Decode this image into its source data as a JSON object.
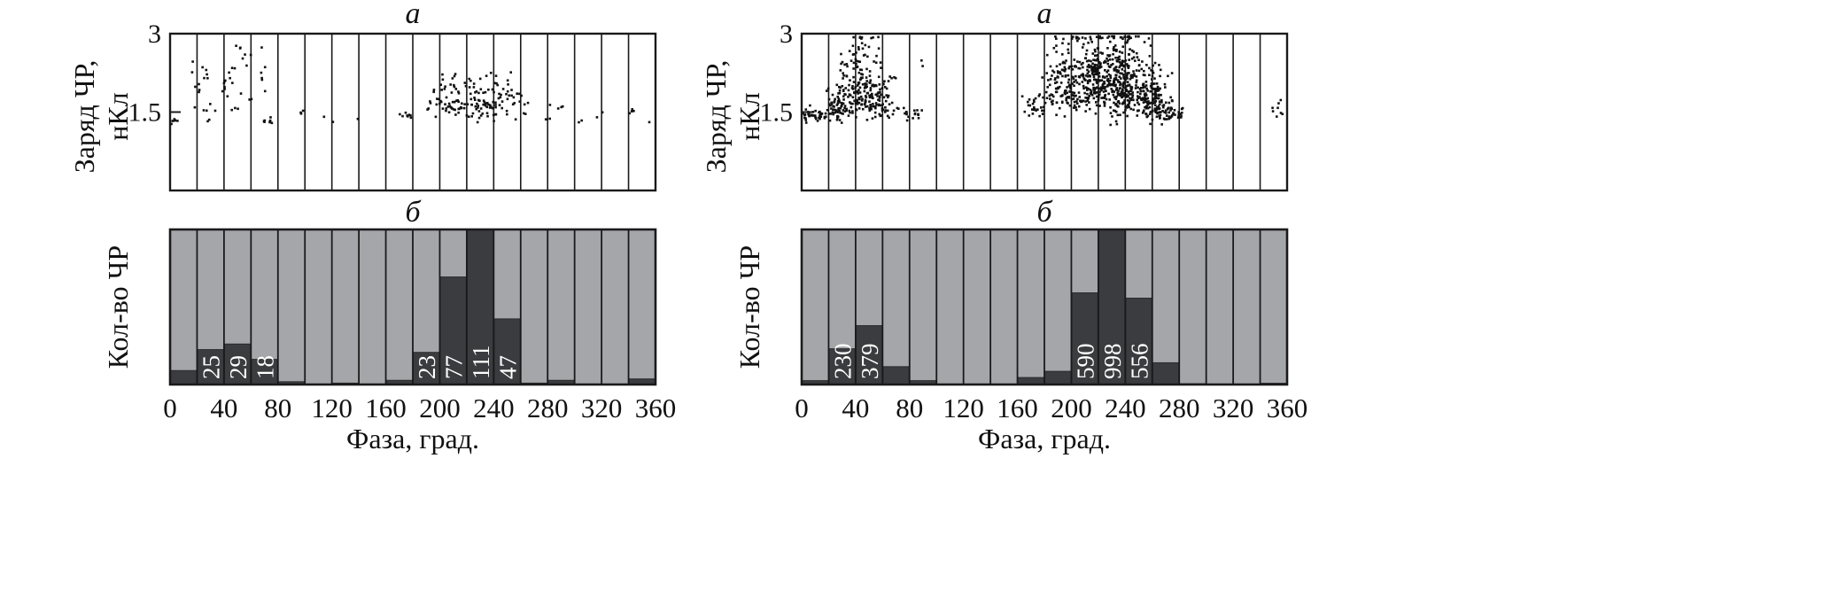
{
  "chart_data": [
    {
      "id": "left",
      "type": "scatter",
      "panel_label": "а",
      "ylabel_line1": "Заряд ЧР,",
      "ylabel_line2": "нКл",
      "y_ticks": [
        "3",
        "1.5"
      ],
      "y_tick_values": [
        3,
        1.5
      ],
      "ylim": [
        0,
        3
      ],
      "xlim": [
        0,
        360
      ],
      "grid": "vertical lines every 20°",
      "clusters": [
        {
          "x": 4,
          "y": 1.3,
          "n": 6,
          "sx": 3,
          "sy": 0.05
        },
        {
          "x": 22,
          "y": 1.8,
          "n": 12,
          "sx": 3,
          "sy": 0.5
        },
        {
          "x": 30,
          "y": 1.4,
          "n": 6,
          "sx": 3,
          "sy": 0.15
        },
        {
          "x": 46,
          "y": 1.7,
          "n": 22,
          "sx": 6,
          "sy": 0.45
        },
        {
          "x": 52,
          "y": 2.7,
          "n": 3,
          "sx": 2,
          "sy": 0.1
        },
        {
          "x": 68,
          "y": 2.2,
          "n": 6,
          "sx": 3,
          "sy": 0.4
        },
        {
          "x": 72,
          "y": 1.3,
          "n": 8,
          "sx": 4,
          "sy": 0.05
        },
        {
          "x": 95,
          "y": 1.4,
          "n": 3,
          "sx": 4,
          "sy": 0.1
        },
        {
          "x": 118,
          "y": 1.3,
          "n": 2,
          "sx": 4,
          "sy": 0.05
        },
        {
          "x": 138,
          "y": 1.3,
          "n": 1,
          "sx": 2,
          "sy": 0.05
        },
        {
          "x": 178,
          "y": 1.4,
          "n": 8,
          "sx": 5,
          "sy": 0.08
        },
        {
          "x": 196,
          "y": 1.6,
          "n": 10,
          "sx": 4,
          "sy": 0.2
        },
        {
          "x": 210,
          "y": 1.6,
          "n": 45,
          "sx": 6,
          "sy": 0.3
        },
        {
          "x": 232,
          "y": 1.5,
          "n": 75,
          "sx": 8,
          "sy": 0.3
        },
        {
          "x": 250,
          "y": 1.6,
          "n": 25,
          "sx": 6,
          "sy": 0.3
        },
        {
          "x": 262,
          "y": 1.4,
          "n": 5,
          "sx": 4,
          "sy": 0.1
        },
        {
          "x": 282,
          "y": 1.4,
          "n": 3,
          "sx": 4,
          "sy": 0.1
        },
        {
          "x": 290,
          "y": 1.5,
          "n": 3,
          "sx": 3,
          "sy": 0.1
        },
        {
          "x": 303,
          "y": 1.3,
          "n": 2,
          "sx": 2,
          "sy": 0.05
        },
        {
          "x": 318,
          "y": 1.45,
          "n": 2,
          "sx": 3,
          "sy": 0.1
        },
        {
          "x": 342,
          "y": 1.4,
          "n": 4,
          "sx": 2,
          "sy": 0.15
        },
        {
          "x": 356,
          "y": 1.3,
          "n": 1,
          "sx": 2,
          "sy": 0.05
        }
      ]
    },
    {
      "id": "left",
      "type": "bar",
      "panel_label": "б",
      "ylabel": "Кол-во ЧР",
      "xlabel": "Фаза, град.",
      "x_ticks": [
        "0",
        "40",
        "80",
        "120",
        "160",
        "200",
        "240",
        "280",
        "320",
        "360"
      ],
      "x_tick_values": [
        0,
        40,
        80,
        120,
        160,
        200,
        240,
        280,
        320,
        360
      ],
      "bin_width": 20,
      "ylim": [
        0,
        111
      ],
      "values": [
        10,
        25,
        29,
        18,
        2,
        0,
        1,
        0,
        3,
        23,
        77,
        111,
        47,
        1,
        3,
        0,
        0,
        4
      ],
      "value_labels": [
        "",
        "25",
        "29",
        "18",
        "",
        "",
        "",
        "",
        "",
        "23",
        "77",
        "111",
        "47",
        "",
        "",
        "",
        "",
        ""
      ]
    },
    {
      "id": "right",
      "type": "scatter",
      "panel_label": "а",
      "ylabel_line1": "Заряд ЧР,",
      "ylabel_line2": "нКл",
      "y_ticks": [
        "3",
        "1.5"
      ],
      "y_tick_values": [
        3,
        1.5
      ],
      "ylim": [
        0,
        3
      ],
      "xlim": [
        0,
        360
      ],
      "grid": "vertical lines every 20°",
      "clusters": [
        {
          "x": 10,
          "y": 1.4,
          "n": 40,
          "sx": 5,
          "sy": 0.1
        },
        {
          "x": 28,
          "y": 1.5,
          "n": 80,
          "sx": 5,
          "sy": 0.25
        },
        {
          "x": 44,
          "y": 1.8,
          "n": 150,
          "sx": 8,
          "sy": 0.55
        },
        {
          "x": 58,
          "y": 1.6,
          "n": 70,
          "sx": 6,
          "sy": 0.3
        },
        {
          "x": 80,
          "y": 1.4,
          "n": 20,
          "sx": 6,
          "sy": 0.12
        },
        {
          "x": 88,
          "y": 2.4,
          "n": 2,
          "sx": 1,
          "sy": 0.1
        },
        {
          "x": 172,
          "y": 1.5,
          "n": 25,
          "sx": 5,
          "sy": 0.2
        },
        {
          "x": 194,
          "y": 1.8,
          "n": 130,
          "sx": 8,
          "sy": 0.5
        },
        {
          "x": 216,
          "y": 1.9,
          "n": 240,
          "sx": 8,
          "sy": 0.55
        },
        {
          "x": 238,
          "y": 1.8,
          "n": 280,
          "sx": 8,
          "sy": 0.55
        },
        {
          "x": 258,
          "y": 1.6,
          "n": 160,
          "sx": 7,
          "sy": 0.4
        },
        {
          "x": 274,
          "y": 1.4,
          "n": 45,
          "sx": 6,
          "sy": 0.15
        },
        {
          "x": 352,
          "y": 1.45,
          "n": 8,
          "sx": 3,
          "sy": 0.12
        }
      ]
    },
    {
      "id": "right",
      "type": "bar",
      "panel_label": "б",
      "ylabel": "Кол-во ЧР",
      "xlabel": "Фаза, град.",
      "x_ticks": [
        "0",
        "40",
        "80",
        "120",
        "160",
        "200",
        "240",
        "280",
        "320",
        "360"
      ],
      "x_tick_values": [
        0,
        40,
        80,
        120,
        160,
        200,
        240,
        280,
        320,
        360
      ],
      "bin_width": 20,
      "ylim": [
        0,
        998
      ],
      "values": [
        25,
        230,
        379,
        115,
        25,
        0,
        0,
        0,
        45,
        85,
        590,
        998,
        556,
        140,
        5,
        0,
        0,
        8
      ],
      "value_labels": [
        "",
        "230",
        "379",
        "",
        "",
        "",
        "",
        "",
        "",
        "",
        "590",
        "998",
        "556",
        "",
        "",
        "",
        "",
        ""
      ]
    }
  ]
}
